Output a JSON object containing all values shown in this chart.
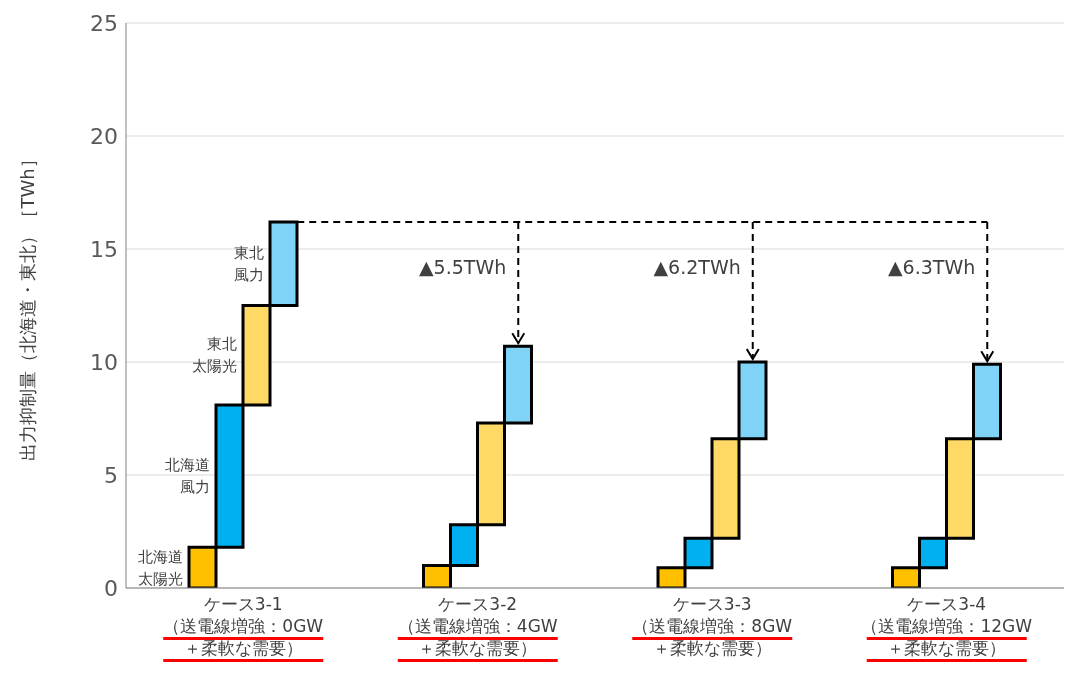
{
  "chart_data": {
    "type": "bar",
    "ylabel": "出力抑制量（北海道・東北）［TWh］",
    "categories": [
      "ケース3-1\n（送電線増強：0GW\n＋柔軟な需要）",
      "ケース3-2\n（送電線増強：4GW\n＋柔軟な需要）",
      "ケース3-3\n（送電線増強：8GW\n＋柔軟な需要）",
      "ケース3-4\n（送電線増強：12GW\n＋柔軟な需要）"
    ],
    "series": [
      {
        "name": "北海道太陽光",
        "color": "#ffc000",
        "values": [
          1.8,
          1.0,
          0.9,
          0.9
        ],
        "base": [
          0,
          0,
          0,
          0
        ]
      },
      {
        "name": "北海道風力",
        "color": "#00b0f0",
        "values": [
          6.3,
          1.8,
          1.3,
          1.3
        ],
        "base": [
          1.8,
          1.0,
          0.9,
          0.9
        ]
      },
      {
        "name": "東北太陽光",
        "color": "#ffd966",
        "values": [
          4.4,
          4.5,
          4.4,
          4.4
        ],
        "base": [
          8.1,
          2.8,
          2.2,
          2.2
        ]
      },
      {
        "name": "東北風力",
        "color": "#7fd3f7",
        "values": [
          3.7,
          3.4,
          3.4,
          3.3
        ],
        "base": [
          12.5,
          7.3,
          6.6,
          6.6
        ]
      }
    ],
    "ylim": [
      0,
      25
    ],
    "yticks": [
      0,
      5,
      10,
      15,
      20,
      25
    ],
    "grid": "y",
    "legend": false,
    "ref_lines": [
      {
        "axis": "y",
        "value": 16.2,
        "line_style": "dashed",
        "color": "#000000"
      }
    ],
    "annotations": [
      "▲5.5TWh",
      "▲6.2TWh",
      "▲6.3TWh"
    ]
  }
}
